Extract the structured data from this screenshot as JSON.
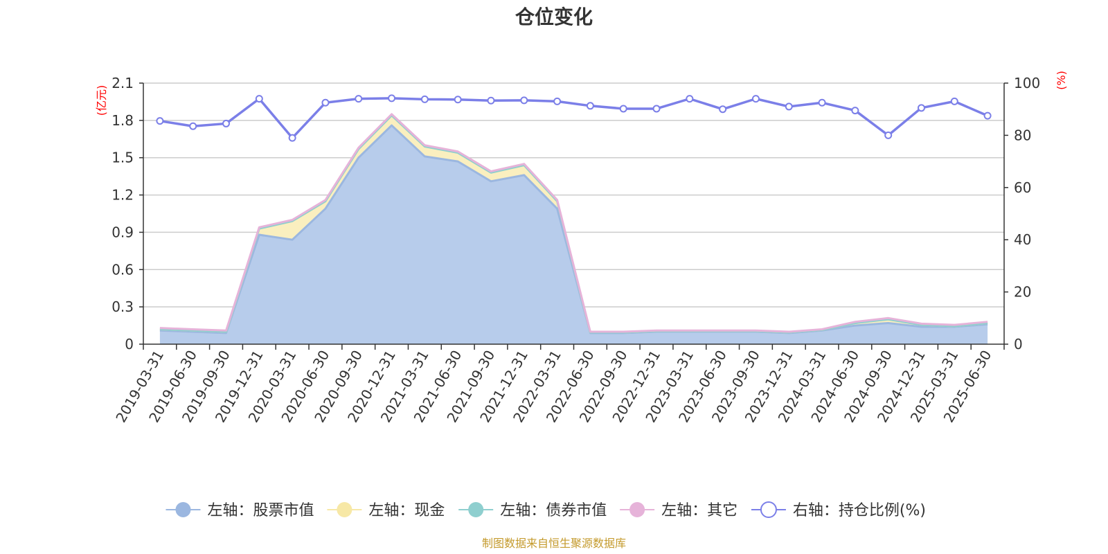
{
  "chart_data": {
    "type": "area",
    "title": "仓位变化",
    "left_axis_unit": "(亿元)",
    "right_axis_unit": "(%)",
    "left_ylim": [
      0,
      2.1
    ],
    "left_ticks": [
      "0",
      "0.3",
      "0.6",
      "0.9",
      "1.2",
      "1.5",
      "1.8",
      "2.1"
    ],
    "right_ylim": [
      0,
      100
    ],
    "right_ticks": [
      "0",
      "20",
      "40",
      "60",
      "80",
      "100"
    ],
    "grid": true,
    "legend_position": "bottom",
    "categories": [
      "2019-03-31",
      "2019-06-30",
      "2019-09-30",
      "2019-12-31",
      "2020-03-31",
      "2020-06-30",
      "2020-09-30",
      "2020-12-31",
      "2021-03-31",
      "2021-06-30",
      "2021-09-30",
      "2021-12-31",
      "2022-03-31",
      "2022-06-30",
      "2022-09-30",
      "2022-12-31",
      "2023-03-31",
      "2023-06-30",
      "2023-09-30",
      "2023-12-31",
      "2024-03-31",
      "2024-06-30",
      "2024-09-30",
      "2024-12-31",
      "2025-03-31",
      "2025-06-30"
    ],
    "series": [
      {
        "name": "左轴：股票市值",
        "axis": "left",
        "color": "#9bb7e0",
        "fill": "#b7cceb",
        "values": [
          0.11,
          0.1,
          0.09,
          0.88,
          0.84,
          1.09,
          1.5,
          1.76,
          1.51,
          1.47,
          1.31,
          1.36,
          1.09,
          0.09,
          0.09,
          0.1,
          0.1,
          0.1,
          0.1,
          0.09,
          0.11,
          0.15,
          0.17,
          0.14,
          0.14,
          0.16
        ]
      },
      {
        "name": "左轴：现金",
        "axis": "left",
        "color": "#f7e8a6",
        "fill": "#faefbf",
        "values": [
          0.01,
          0.01,
          0.01,
          0.05,
          0.15,
          0.06,
          0.07,
          0.08,
          0.08,
          0.07,
          0.07,
          0.08,
          0.06,
          0.005,
          0.005,
          0.005,
          0.005,
          0.005,
          0.005,
          0.005,
          0.005,
          0.02,
          0.03,
          0.015,
          0.005,
          0.01
        ]
      },
      {
        "name": "左轴：债券市值",
        "axis": "left",
        "color": "#8fcfcf",
        "fill": "#a9dcdc",
        "values": [
          0,
          0,
          0,
          0,
          0,
          0,
          0,
          0,
          0,
          0,
          0,
          0,
          0,
          0,
          0,
          0,
          0,
          0,
          0,
          0,
          0,
          0,
          0,
          0,
          0,
          0
        ]
      },
      {
        "name": "左轴：其它",
        "axis": "left",
        "color": "#e6b3d9",
        "fill": "#eec4e3",
        "values": [
          0.01,
          0.01,
          0.01,
          0.01,
          0.01,
          0.01,
          0.01,
          0.01,
          0.01,
          0.01,
          0.01,
          0.01,
          0.01,
          0.005,
          0.005,
          0.005,
          0.005,
          0.005,
          0.005,
          0.005,
          0.005,
          0.01,
          0.01,
          0.01,
          0.01,
          0.01
        ]
      },
      {
        "name": "右轴：持仓比例(%)",
        "axis": "right",
        "color": "#7b7fe8",
        "values": [
          85.5,
          83.5,
          84.5,
          94,
          79,
          92.5,
          94,
          94.2,
          93.8,
          93.7,
          93.3,
          93.4,
          93,
          91.3,
          90.2,
          90.2,
          94,
          90,
          94,
          91,
          92.5,
          89.5,
          80,
          90.5,
          93,
          87.5
        ]
      }
    ],
    "source": "制图数据来自恒生聚源数据库"
  }
}
